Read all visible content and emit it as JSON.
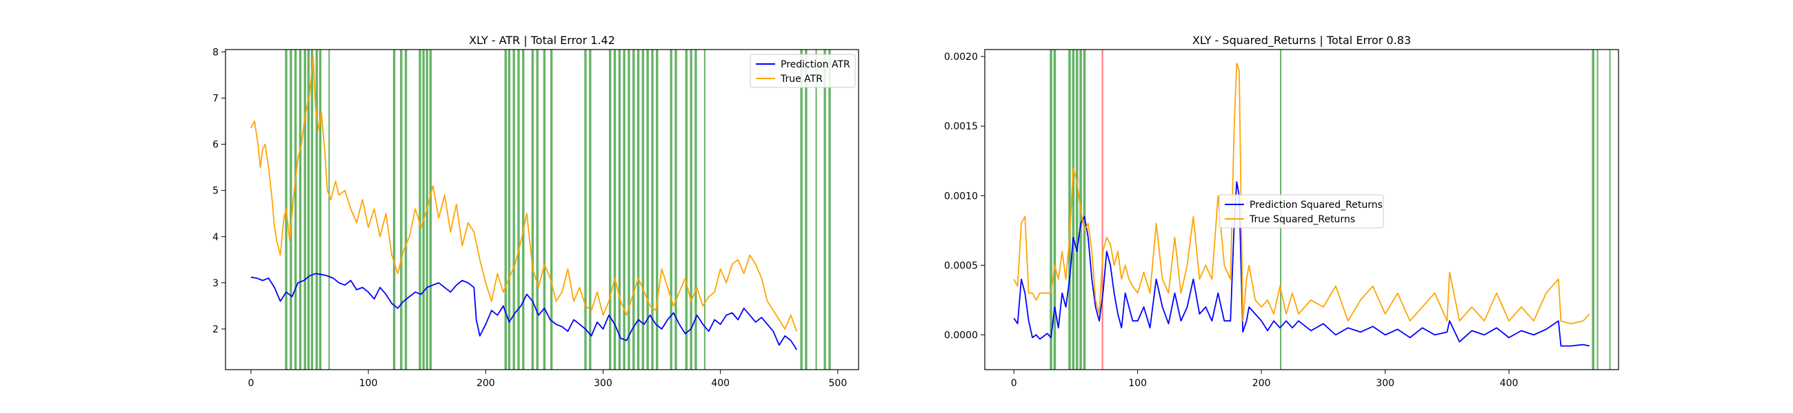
{
  "chart_data": [
    {
      "type": "line",
      "title": "XLY - ATR | Total Error 1.42",
      "xlabel": "",
      "ylabel": "",
      "xlim": [
        -21.7,
        517.7
      ],
      "ylim": [
        1.12,
        8.05
      ],
      "xticks": [
        0,
        100,
        200,
        300,
        400,
        500
      ],
      "yticks": [
        2,
        3,
        4,
        5,
        6,
        7,
        8
      ],
      "xtick_labels": [
        "0",
        "100",
        "200",
        "300",
        "400",
        "500"
      ],
      "ytick_labels": [
        "2",
        "3",
        "4",
        "5",
        "6",
        "7",
        "8"
      ],
      "grid": false,
      "legend": "upper-right",
      "series": [
        {
          "name": "Prediction ATR",
          "color": "#0000ff",
          "x": [
            0,
            5,
            10,
            15,
            20,
            25,
            30,
            35,
            40,
            45,
            50,
            55,
            60,
            65,
            70,
            75,
            80,
            85,
            90,
            95,
            100,
            105,
            110,
            115,
            120,
            125,
            130,
            135,
            140,
            145,
            150,
            155,
            160,
            165,
            170,
            175,
            180,
            185,
            190,
            192,
            195,
            200,
            205,
            210,
            215,
            220,
            225,
            230,
            235,
            240,
            245,
            250,
            255,
            260,
            265,
            270,
            275,
            280,
            285,
            290,
            295,
            300,
            305,
            310,
            315,
            320,
            325,
            330,
            335,
            340,
            345,
            350,
            355,
            360,
            365,
            370,
            375,
            380,
            385,
            390,
            395,
            400,
            405,
            410,
            415,
            420,
            425,
            430,
            435,
            440,
            445,
            450,
            455,
            460,
            465
          ],
          "y": [
            3.12,
            3.1,
            3.05,
            3.1,
            2.9,
            2.6,
            2.8,
            2.7,
            3.0,
            3.05,
            3.15,
            3.2,
            3.18,
            3.15,
            3.1,
            3.0,
            2.95,
            3.05,
            2.85,
            2.9,
            2.8,
            2.65,
            2.9,
            2.75,
            2.55,
            2.45,
            2.6,
            2.7,
            2.8,
            2.75,
            2.9,
            2.95,
            3.0,
            2.9,
            2.8,
            2.95,
            3.05,
            3.0,
            2.9,
            2.2,
            1.85,
            2.1,
            2.4,
            2.3,
            2.5,
            2.15,
            2.35,
            2.5,
            2.75,
            2.6,
            2.3,
            2.45,
            2.2,
            2.1,
            2.05,
            1.95,
            2.2,
            2.1,
            2.0,
            1.85,
            2.15,
            2.0,
            2.3,
            2.1,
            1.8,
            1.75,
            2.0,
            2.2,
            2.1,
            2.3,
            2.1,
            2.0,
            2.2,
            2.35,
            2.1,
            1.9,
            2.0,
            2.3,
            2.1,
            1.95,
            2.2,
            2.1,
            2.3,
            2.35,
            2.2,
            2.45,
            2.3,
            2.15,
            2.25,
            2.1,
            1.95,
            1.65,
            1.85,
            1.75,
            1.55
          ]
        },
        {
          "name": "True ATR",
          "color": "#ffa500",
          "x": [
            0,
            3,
            6,
            8,
            10,
            12,
            15,
            18,
            20,
            22,
            25,
            28,
            30,
            33,
            36,
            40,
            43,
            46,
            50,
            53,
            55,
            58,
            60,
            63,
            65,
            68,
            72,
            75,
            80,
            85,
            90,
            95,
            100,
            105,
            110,
            115,
            120,
            125,
            130,
            135,
            140,
            145,
            150,
            155,
            160,
            165,
            170,
            175,
            180,
            185,
            190,
            195,
            200,
            205,
            210,
            215,
            220,
            225,
            230,
            235,
            240,
            245,
            250,
            255,
            260,
            265,
            270,
            275,
            280,
            285,
            290,
            295,
            300,
            305,
            310,
            315,
            320,
            325,
            330,
            335,
            340,
            345,
            350,
            355,
            360,
            365,
            370,
            375,
            380,
            385,
            390,
            395,
            400,
            405,
            410,
            415,
            420,
            425,
            430,
            435,
            440,
            445,
            450,
            455,
            460,
            465
          ],
          "y": [
            6.35,
            6.5,
            6.0,
            5.5,
            5.9,
            6.0,
            5.5,
            4.8,
            4.2,
            3.9,
            3.6,
            4.4,
            4.6,
            3.9,
            4.8,
            5.7,
            6.0,
            6.6,
            7.1,
            7.9,
            6.8,
            6.3,
            6.7,
            5.8,
            5.0,
            4.8,
            5.2,
            4.9,
            5.0,
            4.6,
            4.3,
            4.8,
            4.2,
            4.6,
            4.0,
            4.5,
            3.6,
            3.2,
            3.7,
            4.0,
            4.6,
            4.2,
            4.6,
            5.1,
            4.4,
            4.9,
            4.1,
            4.7,
            3.8,
            4.3,
            4.1,
            3.5,
            3.0,
            2.6,
            3.2,
            2.8,
            3.1,
            3.4,
            3.9,
            4.5,
            3.3,
            2.9,
            3.4,
            3.1,
            2.6,
            2.8,
            3.3,
            2.6,
            2.9,
            2.5,
            2.4,
            2.8,
            2.3,
            2.6,
            3.1,
            2.6,
            2.3,
            2.7,
            3.1,
            2.8,
            2.5,
            2.4,
            3.3,
            2.9,
            2.5,
            2.8,
            3.1,
            2.6,
            2.9,
            2.5,
            2.7,
            2.8,
            3.3,
            3.0,
            3.4,
            3.5,
            3.2,
            3.6,
            3.4,
            3.1,
            2.6,
            2.4,
            2.2,
            2.0,
            2.3,
            1.95
          ]
        }
      ],
      "highlight_spans": [
        {
          "color": "#008000",
          "ranges": [
            [
              29,
              31
            ],
            [
              33,
              35
            ],
            [
              37,
              39
            ],
            [
              41,
              43
            ],
            [
              45,
              47
            ],
            [
              48,
              50
            ],
            [
              51,
              53
            ],
            [
              55,
              57
            ],
            [
              58,
              60
            ],
            [
              66,
              67
            ],
            [
              121,
              123
            ],
            [
              127,
              129
            ],
            [
              131,
              133
            ],
            [
              143,
              145
            ],
            [
              146,
              148
            ],
            [
              149,
              151
            ],
            [
              152,
              154
            ],
            [
              216,
              218
            ],
            [
              219,
              221
            ],
            [
              223,
              225
            ],
            [
              227,
              229
            ],
            [
              231,
              233
            ],
            [
              239,
              241
            ],
            [
              243,
              245
            ],
            [
              249,
              251
            ],
            [
              255,
              257
            ],
            [
              284,
              286
            ],
            [
              288,
              290
            ],
            [
              305,
              307
            ],
            [
              309,
              311
            ],
            [
              313,
              315
            ],
            [
              317,
              319
            ],
            [
              321,
              323
            ],
            [
              325,
              327
            ],
            [
              329,
              331
            ],
            [
              333,
              335
            ],
            [
              337,
              339
            ],
            [
              341,
              343
            ],
            [
              345,
              347
            ],
            [
              357,
              359
            ],
            [
              361,
              363
            ],
            [
              370,
              372
            ],
            [
              374,
              376
            ],
            [
              378,
              380
            ],
            [
              386,
              387
            ],
            [
              468,
              470
            ],
            [
              472,
              474
            ],
            [
              481,
              482
            ],
            [
              488,
              490
            ],
            [
              492,
              494
            ]
          ]
        }
      ]
    },
    {
      "type": "line",
      "title": "XLY - Squared_Returns | Total Error 0.83",
      "xlabel": "",
      "ylabel": "",
      "xlim": [
        -23.5,
        488.5
      ],
      "ylim": [
        -0.00025,
        0.00205
      ],
      "xticks": [
        0,
        100,
        200,
        300,
        400
      ],
      "yticks": [
        0.0,
        0.0005,
        0.001,
        0.0015,
        0.002
      ],
      "xtick_labels": [
        "0",
        "100",
        "200",
        "300",
        "400"
      ],
      "ytick_labels": [
        "0.0000",
        "0.0005",
        "0.0010",
        "0.0015",
        "0.0020"
      ],
      "grid": false,
      "legend": "center",
      "series": [
        {
          "name": "Prediction Squared_Returns",
          "color": "#0000ff",
          "x": [
            0,
            3,
            6,
            9,
            12,
            15,
            18,
            21,
            24,
            27,
            30,
            33,
            36,
            39,
            42,
            45,
            48,
            51,
            54,
            57,
            60,
            63,
            66,
            69,
            72,
            75,
            78,
            81,
            84,
            87,
            90,
            93,
            96,
            100,
            105,
            110,
            115,
            120,
            125,
            130,
            135,
            140,
            145,
            150,
            155,
            160,
            165,
            170,
            175,
            178,
            180,
            182,
            185,
            188,
            190,
            195,
            200,
            205,
            210,
            215,
            220,
            225,
            230,
            240,
            250,
            260,
            270,
            280,
            290,
            300,
            310,
            320,
            330,
            340,
            350,
            352,
            360,
            370,
            380,
            390,
            400,
            410,
            420,
            430,
            440,
            442,
            450,
            460,
            465
          ],
          "y": [
            0.00012,
            8e-05,
            0.0004,
            0.0003,
            0.0001,
            -2e-05,
            0.0,
            -3e-05,
            -1e-05,
            1e-05,
            -2e-05,
            0.0002,
            5e-05,
            0.0003,
            0.0002,
            0.0004,
            0.0007,
            0.0006,
            0.0008,
            0.00085,
            0.0007,
            0.0004,
            0.0002,
            0.0001,
            0.0003,
            0.0006,
            0.0005,
            0.0003,
            0.00015,
            5e-05,
            0.0003,
            0.0002,
            0.0001,
            0.0001,
            0.0002,
            5e-05,
            0.0004,
            0.0002,
            8e-05,
            0.0003,
            0.0001,
            0.0002,
            0.0004,
            0.00015,
            0.0002,
            0.0001,
            0.0003,
            0.0001,
            0.0001,
            0.0008,
            0.0011,
            0.001,
            2e-05,
            0.0001,
            0.0002,
            0.00015,
            0.0001,
            3e-05,
            0.0001,
            5e-05,
            0.0001,
            5e-05,
            0.0001,
            3e-05,
            8e-05,
            0.0,
            5e-05,
            2e-05,
            6e-05,
            0.0,
            4e-05,
            -2e-05,
            5e-05,
            0.0,
            2e-05,
            0.0001,
            -5e-05,
            3e-05,
            0.0,
            5e-05,
            -2e-05,
            3e-05,
            0.0,
            4e-05,
            0.0001,
            -8e-05,
            -8e-05,
            -7e-05,
            -8e-05
          ]
        },
        {
          "name": "True Squared_Returns",
          "color": "#ffa500",
          "x": [
            0,
            3,
            6,
            9,
            12,
            15,
            18,
            21,
            24,
            27,
            30,
            33,
            36,
            39,
            42,
            45,
            48,
            51,
            54,
            57,
            60,
            63,
            66,
            69,
            72,
            75,
            78,
            81,
            84,
            87,
            90,
            93,
            96,
            100,
            105,
            110,
            115,
            120,
            125,
            130,
            135,
            140,
            145,
            150,
            155,
            160,
            165,
            170,
            175,
            178,
            180,
            182,
            185,
            188,
            190,
            195,
            200,
            205,
            210,
            215,
            220,
            225,
            230,
            240,
            250,
            260,
            270,
            280,
            290,
            300,
            310,
            320,
            330,
            340,
            350,
            352,
            360,
            370,
            380,
            390,
            400,
            410,
            420,
            430,
            440,
            442,
            450,
            460,
            465
          ],
          "y": [
            0.0004,
            0.00035,
            0.0008,
            0.00085,
            0.0003,
            0.0003,
            0.00025,
            0.0003,
            0.0003,
            0.0003,
            0.0003,
            0.0005,
            0.0004,
            0.0006,
            0.0004,
            0.0007,
            0.0012,
            0.0011,
            0.0009,
            0.00075,
            0.0008,
            0.0006,
            0.00025,
            0.00015,
            0.0006,
            0.0007,
            0.00065,
            0.0005,
            0.0006,
            0.0004,
            0.0005,
            0.0004,
            0.00035,
            0.0003,
            0.00045,
            0.0003,
            0.0008,
            0.0004,
            0.0003,
            0.0007,
            0.0003,
            0.0005,
            0.00085,
            0.0004,
            0.0005,
            0.0004,
            0.001,
            0.0005,
            0.0004,
            0.0015,
            0.00195,
            0.0019,
            0.0001,
            0.0004,
            0.0005,
            0.00025,
            0.0002,
            0.00025,
            0.00015,
            0.00035,
            0.00015,
            0.0003,
            0.00015,
            0.00025,
            0.0002,
            0.00035,
            0.0001,
            0.00025,
            0.00035,
            0.00015,
            0.0003,
            0.0001,
            0.0002,
            0.0003,
            0.0001,
            0.00045,
            0.0001,
            0.0002,
            0.0001,
            0.0003,
            0.0001,
            0.0002,
            0.0001,
            0.0003,
            0.0004,
            0.0001,
            8e-05,
            0.0001,
            0.00015
          ]
        }
      ],
      "highlight_spans": [
        {
          "color": "#008000",
          "ranges": [
            [
              29,
              31
            ],
            [
              32,
              34
            ],
            [
              44,
              46
            ],
            [
              47,
              49
            ],
            [
              50,
              52
            ],
            [
              53,
              55
            ],
            [
              56,
              58
            ],
            [
              215,
              216
            ],
            [
              467,
              469
            ],
            [
              471,
              472
            ],
            [
              481,
              482
            ]
          ]
        },
        {
          "color": "#ff0000",
          "ranges": [
            [
              71,
              72
            ]
          ]
        }
      ]
    }
  ]
}
